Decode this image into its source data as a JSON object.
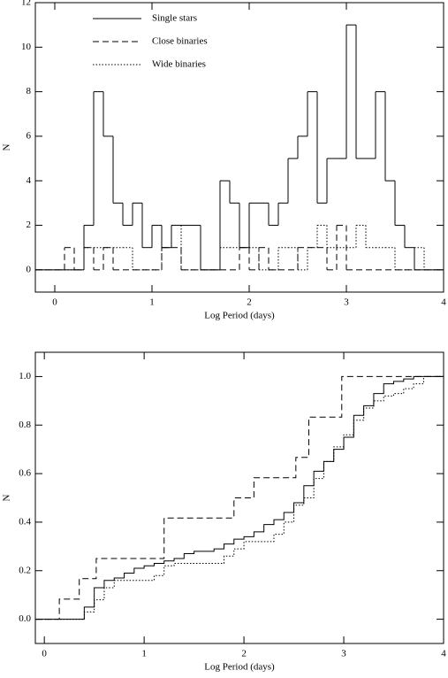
{
  "chart_data": [
    {
      "type": "histogram",
      "xlabel": "Log Period (days)",
      "ylabel": "N",
      "xlim": [
        -0.2,
        4.0
      ],
      "ylim": [
        -1,
        12
      ],
      "xticks": [
        0,
        1,
        2,
        3,
        4
      ],
      "yticks": [
        0,
        2,
        4,
        6,
        8,
        10,
        12
      ],
      "legend": "upper left",
      "bins": [
        -0.2,
        -0.1,
        0,
        0.1,
        0.2,
        0.3,
        0.4,
        0.5,
        0.6,
        0.7,
        0.8,
        0.9,
        1,
        1.1,
        1.2,
        1.3,
        1.4,
        1.5,
        1.6,
        1.7,
        1.8,
        1.9,
        2,
        2.1,
        2.2,
        2.3,
        2.4,
        2.5,
        2.6,
        2.7,
        2.8,
        2.9,
        3,
        3.1,
        3.2,
        3.3,
        3.4,
        3.5,
        3.6,
        3.7,
        3.8,
        3.9,
        4
      ],
      "series": [
        {
          "name": "Single stars",
          "color": "#000000",
          "dash": "solid",
          "values": [
            0,
            0,
            0,
            0,
            0,
            2,
            8,
            6,
            3,
            2,
            3,
            1,
            2,
            1,
            2,
            2,
            2,
            0,
            0,
            4,
            3,
            1,
            3,
            3,
            2,
            3,
            5,
            6,
            8,
            3,
            5,
            5,
            11,
            5,
            5,
            8,
            4,
            2,
            1,
            0,
            0,
            0
          ]
        },
        {
          "name": "Close binaries",
          "color": "#000000",
          "dash": "dashed",
          "values": [
            0,
            0,
            0,
            1,
            0,
            1,
            0,
            1,
            0,
            0,
            0,
            0,
            0,
            1,
            1,
            0,
            0,
            0,
            0,
            0,
            0,
            1,
            0,
            1,
            0,
            0,
            0,
            1,
            1,
            1,
            0,
            2,
            0,
            0,
            0,
            0,
            0,
            0,
            0,
            0,
            0,
            0
          ]
        },
        {
          "name": "Wide binaries",
          "color": "#000000",
          "dash": "dotted",
          "values": [
            0,
            0,
            0,
            0,
            0,
            1,
            1,
            1,
            1,
            1,
            0,
            0,
            0,
            1,
            2,
            0,
            0,
            0,
            0,
            1,
            1,
            1,
            1,
            0,
            0,
            1,
            1,
            0,
            1,
            2,
            1,
            1,
            1,
            2,
            1,
            1,
            1,
            0,
            0,
            1,
            0,
            0
          ]
        }
      ]
    },
    {
      "type": "line",
      "step": true,
      "xlabel": "Log Period (days)",
      "ylabel": "N",
      "xlim": [
        -0.09,
        4.0
      ],
      "ylim": [
        -0.1,
        1.1
      ],
      "xticks": [
        0,
        1,
        2,
        3,
        4
      ],
      "yticks": [
        {
          "value": 0,
          "label": "0.0"
        },
        0.2,
        0.4,
        0.6,
        0.8,
        {
          "value": 1,
          "label": "1.0"
        }
      ],
      "series": [
        {
          "color": "#000000",
          "dash": "solid",
          "x": [
            -0.09,
            0.3,
            0.4,
            0.5,
            0.6,
            0.7,
            0.8,
            0.9,
            1.0,
            1.1,
            1.2,
            1.3,
            1.4,
            1.5,
            1.6,
            1.7,
            1.8,
            1.9,
            2.0,
            2.1,
            2.2,
            2.3,
            2.4,
            2.5,
            2.6,
            2.7,
            2.8,
            2.9,
            3.0,
            3.1,
            3.2,
            3.3,
            3.4,
            3.5,
            3.6,
            3.7,
            4.0
          ],
          "values": [
            0,
            0,
            0.05,
            0.13,
            0.16,
            0.17,
            0.19,
            0.21,
            0.22,
            0.23,
            0.24,
            0.25,
            0.27,
            0.28,
            0.28,
            0.29,
            0.31,
            0.33,
            0.34,
            0.36,
            0.39,
            0.41,
            0.44,
            0.48,
            0.55,
            0.61,
            0.65,
            0.7,
            0.75,
            0.84,
            0.88,
            0.93,
            0.97,
            0.98,
            0.99,
            1.0,
            1.0
          ]
        },
        {
          "color": "#000000",
          "dash": "dashed",
          "x": [
            -0.09,
            0.15,
            0.35,
            0.52,
            1.2,
            1.9,
            2.1,
            2.52,
            2.65,
            2.98,
            4.0
          ],
          "values": [
            0,
            0.083,
            0.167,
            0.25,
            0.417,
            0.5,
            0.583,
            0.667,
            0.833,
            1.0,
            1.0
          ]
        },
        {
          "color": "#000000",
          "dash": "dotted",
          "x": [
            -0.09,
            0.3,
            0.4,
            0.5,
            0.6,
            0.7,
            1.1,
            1.2,
            1.3,
            1.8,
            1.9,
            2.0,
            2.3,
            2.4,
            2.5,
            2.6,
            2.7,
            2.8,
            2.9,
            3.0,
            3.1,
            3.2,
            3.3,
            3.4,
            3.5,
            3.6,
            3.7,
            3.8,
            4.0
          ],
          "values": [
            0,
            0,
            0.03,
            0.08,
            0.13,
            0.16,
            0.18,
            0.22,
            0.23,
            0.26,
            0.29,
            0.32,
            0.35,
            0.4,
            0.47,
            0.5,
            0.58,
            0.65,
            0.71,
            0.76,
            0.82,
            0.87,
            0.9,
            0.92,
            0.93,
            0.95,
            0.97,
            1.0,
            1.0
          ]
        }
      ]
    }
  ]
}
